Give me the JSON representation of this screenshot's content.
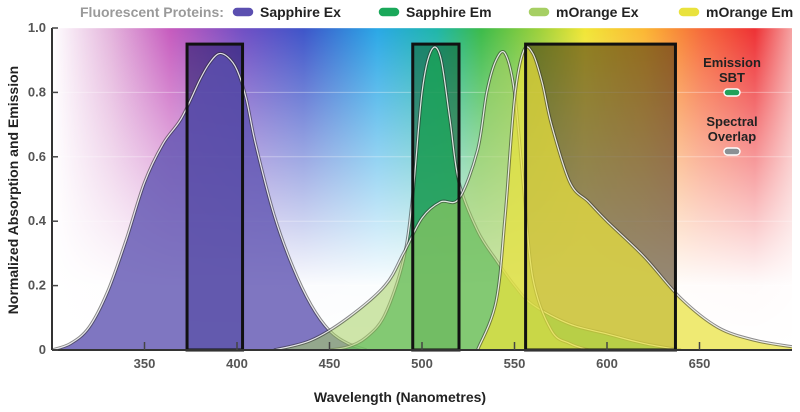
{
  "legend": {
    "title": "Fluorescent Proteins:",
    "entries": [
      {
        "name": "Sapphire Ex",
        "color": "#5b4fb0"
      },
      {
        "name": "Sapphire Em",
        "color": "#1aa85a"
      },
      {
        "name": "mOrange Ex",
        "color": "#a6cf63"
      },
      {
        "name": "mOrange Em",
        "color": "#e9e23d"
      }
    ]
  },
  "annotations": {
    "emission_sbt": {
      "line1": "Emission",
      "line2": "SBT",
      "color": "#22a15a"
    },
    "spectral_overlap": {
      "line1": "Spectral",
      "line2": "Overlap",
      "color": "#8a9094"
    }
  },
  "chart_data": {
    "type": "area",
    "title": "",
    "xlabel": "Wavelength (Nanometres)",
    "ylabel": "Normalized Absorption and Emission",
    "xlim": [
      300,
      700
    ],
    "ylim": [
      0,
      1.0
    ],
    "xticks": [
      350,
      400,
      450,
      500,
      550,
      600,
      650
    ],
    "yticks": [
      0,
      0.2,
      0.4,
      0.6,
      0.8,
      1.0
    ],
    "ytick_labels": [
      "0",
      "0.2",
      "0.4",
      "0.6",
      "0.8",
      "1.0"
    ],
    "background": "visible spectrum gradient",
    "series": [
      {
        "name": "Sapphire Ex",
        "color": "#5b4fb0",
        "x": [
          300,
          310,
          320,
          330,
          340,
          350,
          360,
          370,
          380,
          385,
          390,
          395,
          400,
          405,
          410,
          420,
          430,
          440,
          450,
          460,
          470
        ],
        "y": [
          0.0,
          0.02,
          0.07,
          0.18,
          0.34,
          0.52,
          0.64,
          0.72,
          0.84,
          0.89,
          0.92,
          0.91,
          0.87,
          0.78,
          0.64,
          0.42,
          0.26,
          0.14,
          0.06,
          0.02,
          0.0
        ]
      },
      {
        "name": "Sapphire Em",
        "color": "#1aa85a",
        "x": [
          450,
          460,
          470,
          480,
          490,
          495,
          500,
          505,
          510,
          515,
          520,
          530,
          540,
          550,
          560,
          580,
          600,
          620,
          640
        ],
        "y": [
          0.0,
          0.01,
          0.04,
          0.11,
          0.28,
          0.48,
          0.8,
          0.93,
          0.91,
          0.72,
          0.52,
          0.37,
          0.28,
          0.2,
          0.14,
          0.08,
          0.05,
          0.02,
          0.0
        ]
      },
      {
        "name": "mOrange Ex",
        "color": "#a6cf63",
        "x": [
          420,
          440,
          460,
          480,
          490,
          500,
          510,
          520,
          530,
          535,
          540,
          545,
          550,
          555,
          560,
          570,
          580,
          590
        ],
        "y": [
          0.0,
          0.03,
          0.1,
          0.2,
          0.3,
          0.41,
          0.46,
          0.47,
          0.62,
          0.8,
          0.9,
          0.92,
          0.8,
          0.5,
          0.22,
          0.06,
          0.02,
          0.0
        ]
      },
      {
        "name": "mOrange Em",
        "color": "#e9e23d",
        "x": [
          530,
          540,
          545,
          550,
          555,
          560,
          565,
          570,
          580,
          590,
          600,
          620,
          640,
          660,
          680,
          700
        ],
        "y": [
          0.0,
          0.15,
          0.42,
          0.78,
          0.93,
          0.92,
          0.83,
          0.7,
          0.52,
          0.46,
          0.4,
          0.29,
          0.16,
          0.07,
          0.03,
          0.01
        ]
      }
    ],
    "filter_windows": [
      {
        "x_range": [
          373,
          403
        ],
        "y_top": 0.95,
        "fill": "#1b1464"
      },
      {
        "x_range": [
          495,
          520
        ],
        "y_top": 0.95,
        "fill": "#0a5a2a"
      },
      {
        "x_range": [
          556,
          637
        ],
        "y_top": 0.95,
        "fill": "#3e2a08"
      }
    ]
  }
}
